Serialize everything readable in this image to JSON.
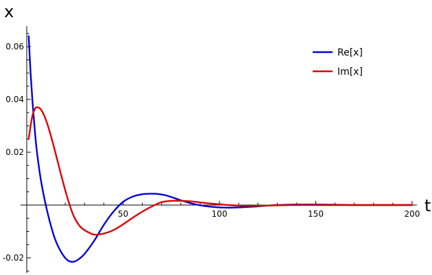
{
  "chart_data": {
    "type": "line",
    "xlabel": "t",
    "ylabel": "x",
    "xlim": [
      0,
      200
    ],
    "ylim": [
      -0.026,
      0.068
    ],
    "x_ticks": [
      50,
      100,
      150,
      200
    ],
    "y_ticks": [
      -0.02,
      0.02,
      0.04,
      0.06
    ],
    "x_tick_labels": [
      "50",
      "100",
      "150",
      "200"
    ],
    "y_tick_labels": [
      "-0.02",
      "0.02",
      "0.04",
      "0.06"
    ],
    "grid": false,
    "legend_position": "top-right",
    "series": [
      {
        "name": "Re[x]",
        "color": "#0000dd",
        "x": [
          1,
          2,
          3,
          4,
          5,
          7,
          9,
          11,
          13,
          15,
          18,
          21,
          24,
          27,
          30,
          35,
          40,
          45,
          50,
          55,
          60,
          65,
          68,
          72,
          76,
          80,
          85,
          90,
          95,
          100,
          105,
          110,
          115,
          120,
          125,
          130,
          135,
          140,
          145,
          150,
          160,
          170,
          180,
          190,
          200
        ],
        "y": [
          0.064,
          0.05,
          0.039,
          0.03,
          0.022,
          0.011,
          0.003,
          -0.0035,
          -0.009,
          -0.0135,
          -0.018,
          -0.0208,
          -0.0215,
          -0.0205,
          -0.0185,
          -0.0135,
          -0.0075,
          -0.0025,
          0.0012,
          0.0032,
          0.0041,
          0.0043,
          0.0042,
          0.0037,
          0.0028,
          0.0018,
          0.0007,
          -0.0001,
          -0.0006,
          -0.0009,
          -0.001,
          -0.0009,
          -0.0007,
          -0.0005,
          -0.0002,
          0.0,
          0.0001,
          0.0002,
          0.0002,
          0.0002,
          0.0001,
          0.0,
          0.0,
          0.0,
          0.0
        ]
      },
      {
        "name": "Im[x]",
        "color": "#dd0000",
        "x": [
          1,
          2,
          3,
          4,
          5,
          7,
          9,
          11,
          13,
          15,
          18,
          21,
          24,
          27,
          30,
          35,
          40,
          45,
          50,
          55,
          60,
          65,
          70,
          75,
          80,
          85,
          90,
          95,
          100,
          105,
          110,
          115,
          120,
          125,
          130,
          140,
          150,
          160,
          170,
          180,
          190,
          200
        ],
        "y": [
          0.025,
          0.03,
          0.034,
          0.036,
          0.037,
          0.0365,
          0.034,
          0.03,
          0.025,
          0.0195,
          0.011,
          0.003,
          -0.0035,
          -0.0075,
          -0.0095,
          -0.0112,
          -0.0108,
          -0.0095,
          -0.0073,
          -0.0048,
          -0.0025,
          -0.0005,
          0.0011,
          0.0016,
          0.0016,
          0.0014,
          0.001,
          0.0006,
          0.0003,
          0.0,
          -0.0002,
          -0.0003,
          -0.0003,
          -0.0002,
          -0.0001,
          0.0,
          0.0,
          0.0,
          0.0,
          0.0,
          0.0,
          0.0
        ]
      }
    ]
  }
}
